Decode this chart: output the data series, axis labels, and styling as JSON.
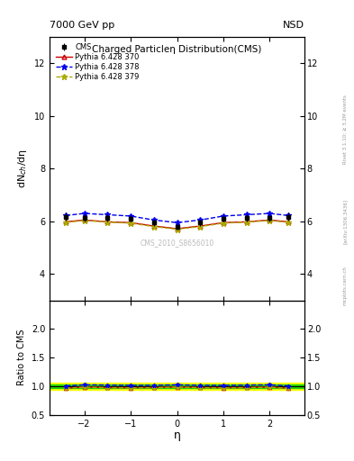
{
  "title_top": "7000 GeV pp",
  "title_top_right": "NSD",
  "plot_title": "Charged Particleη Distribution(CMS)",
  "ylabel_main": "dN$_{ch}$/dη",
  "ylabel_ratio": "Ratio to CMS",
  "xlabel": "η",
  "watermark": "CMS_2010_S8656010",
  "rivet_label": "Rivet 3.1.10; ≥ 3.2M events",
  "arxiv_label": "[arXiv:1306.3436]",
  "mcplots_label": "mcplots.cern.ch",
  "eta_cms": [
    -2.4,
    -2.0,
    -1.5,
    -1.0,
    -0.5,
    0.0,
    0.5,
    1.0,
    1.5,
    2.0,
    2.4
  ],
  "dndeta_cms": [
    6.18,
    6.14,
    6.12,
    6.1,
    5.95,
    5.8,
    5.95,
    6.1,
    6.12,
    6.14,
    6.18
  ],
  "dndeta_cms_err": [
    0.15,
    0.14,
    0.13,
    0.12,
    0.12,
    0.12,
    0.12,
    0.12,
    0.13,
    0.14,
    0.15
  ],
  "eta_py370": [
    -2.4,
    -2.0,
    -1.5,
    -1.0,
    -0.5,
    0.0,
    0.5,
    1.0,
    1.5,
    2.0,
    2.4
  ],
  "dndeta_py370": [
    5.98,
    6.05,
    5.98,
    5.95,
    5.82,
    5.72,
    5.82,
    5.95,
    5.98,
    6.05,
    5.98
  ],
  "eta_py378": [
    -2.4,
    -2.0,
    -1.5,
    -1.0,
    -0.5,
    0.0,
    0.5,
    1.0,
    1.5,
    2.0,
    2.4
  ],
  "dndeta_py378": [
    6.22,
    6.3,
    6.25,
    6.2,
    6.05,
    5.95,
    6.05,
    6.2,
    6.25,
    6.3,
    6.22
  ],
  "eta_py379": [
    -2.4,
    -2.0,
    -1.5,
    -1.0,
    -0.5,
    0.0,
    0.5,
    1.0,
    1.5,
    2.0,
    2.4
  ],
  "dndeta_py379": [
    5.96,
    6.03,
    5.97,
    5.93,
    5.8,
    5.7,
    5.8,
    5.93,
    5.97,
    6.03,
    5.96
  ],
  "ratio_py370": [
    0.968,
    0.985,
    0.977,
    0.975,
    0.978,
    0.986,
    0.978,
    0.975,
    0.977,
    0.985,
    0.968
  ],
  "ratio_py378": [
    1.007,
    1.026,
    1.021,
    1.016,
    1.017,
    1.026,
    1.017,
    1.016,
    1.021,
    1.026,
    1.007
  ],
  "ratio_py379": [
    0.965,
    0.982,
    0.975,
    0.971,
    0.975,
    0.983,
    0.975,
    0.971,
    0.975,
    0.982,
    0.965
  ],
  "cms_band_yellow": 0.07,
  "cms_band_green": 0.03,
  "color_cms": "#000000",
  "color_py370": "#cc0000",
  "color_py378": "#0000ee",
  "color_py379": "#aaaa00",
  "ylim_main": [
    3.0,
    13.0
  ],
  "ylim_ratio": [
    0.5,
    2.5
  ],
  "xlim": [
    -2.75,
    2.75
  ],
  "yticks_main": [
    4,
    6,
    8,
    10,
    12
  ],
  "yticks_ratio": [
    0.5,
    1.0,
    1.5,
    2.0
  ]
}
